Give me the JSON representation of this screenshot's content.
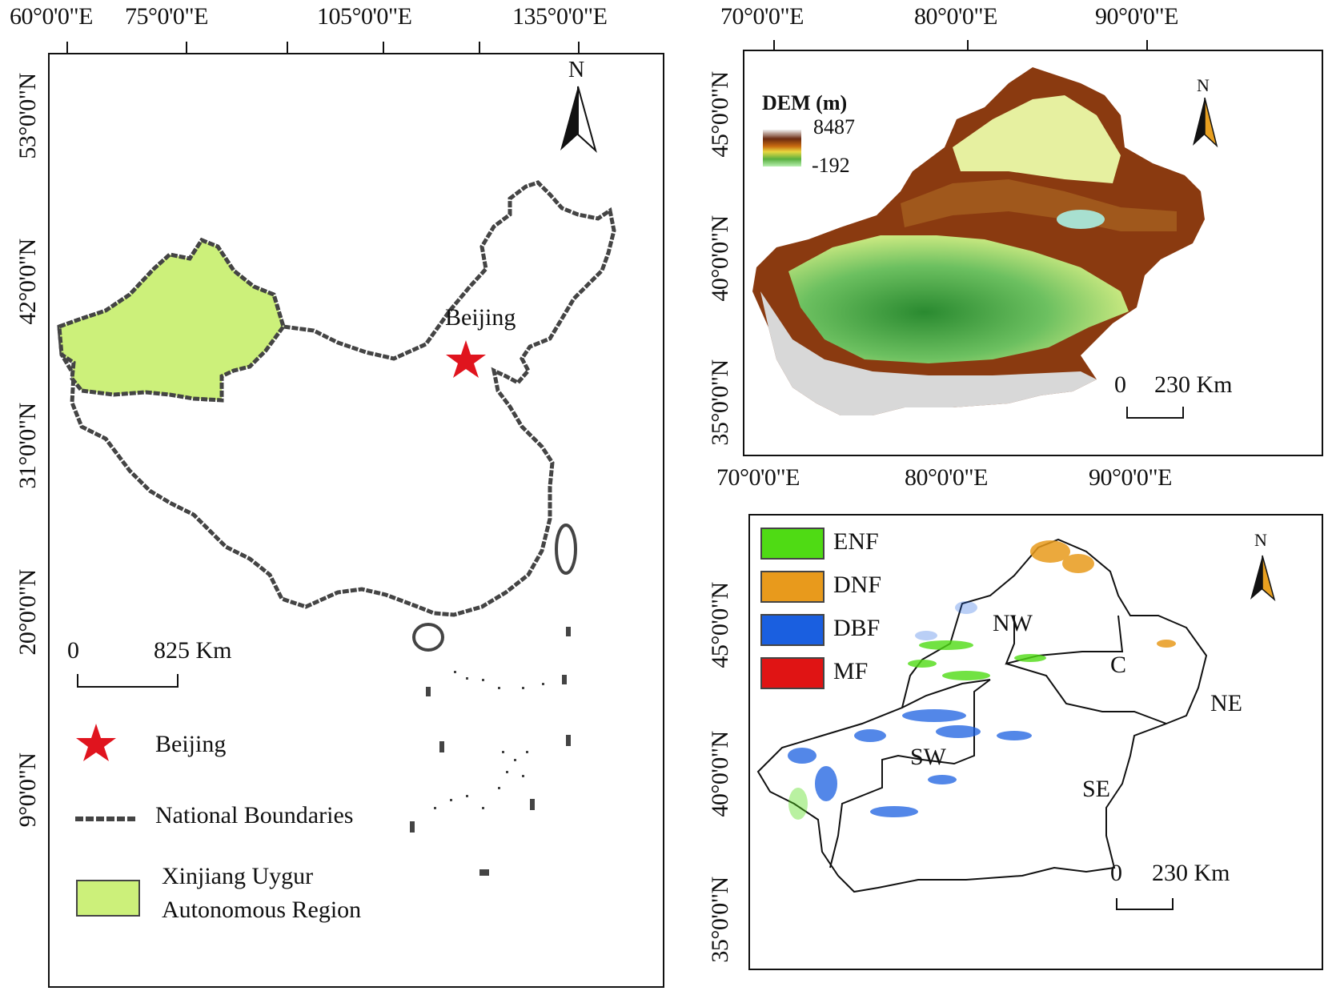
{
  "left_map": {
    "top_ticks": [
      "60°0'0\"E",
      "75°0'0\"E",
      "105°0'0\"E",
      "135°0'0\"E"
    ],
    "left_ticks": [
      "53°0'0\"N",
      "42°0'0\"N",
      "31°0'0\"N",
      "20°0'0\"N",
      "9°0'0\"N"
    ],
    "north_label": "N",
    "city_label": "Beijing",
    "scale": {
      "zero": "0",
      "distance": "825 Km"
    },
    "legend": {
      "beijing": "Beijing",
      "boundaries": "National Boundaries",
      "region_line1": "Xinjiang Uygur",
      "region_line2": "Autonomous Region"
    },
    "colors": {
      "xinjiang": "#ccf07a",
      "beijing_star": "#e0141e",
      "boundary": "#444444"
    }
  },
  "dem_map": {
    "top_ticks": [
      "70°0'0\"E",
      "80°0'0\"E",
      "90°0'0\"E"
    ],
    "left_ticks": [
      "45°0'0\"N",
      "40°0'0\"N",
      "35°0'0\"N"
    ],
    "north_label": "N",
    "legend_title": "DEM (m)",
    "legend_max": "8487",
    "legend_min": "-192",
    "scale": {
      "zero": "0",
      "distance": "230 Km"
    },
    "colors": {
      "low": "#2f9a3a",
      "mid": "#e8f2a0",
      "high": "#8a3a10",
      "peak": "#f4f4f4"
    }
  },
  "forest_map": {
    "top_ticks": [
      "70°0'0\"E",
      "80°0'0\"E",
      "90°0'0\"E"
    ],
    "left_ticks": [
      "45°0'0\"N",
      "40°0'0\"N",
      "35°0'0\"N"
    ],
    "north_label": "N",
    "legend": [
      {
        "label": "ENF",
        "color": "#4fdb14"
      },
      {
        "label": "DNF",
        "color": "#e89a1c"
      },
      {
        "label": "DBF",
        "color": "#1a5fe0"
      },
      {
        "label": "MF",
        "color": "#e01414"
      }
    ],
    "regions": [
      "NW",
      "C",
      "NE",
      "SW",
      "SE"
    ],
    "scale": {
      "zero": "0",
      "distance": "230 Km"
    }
  }
}
